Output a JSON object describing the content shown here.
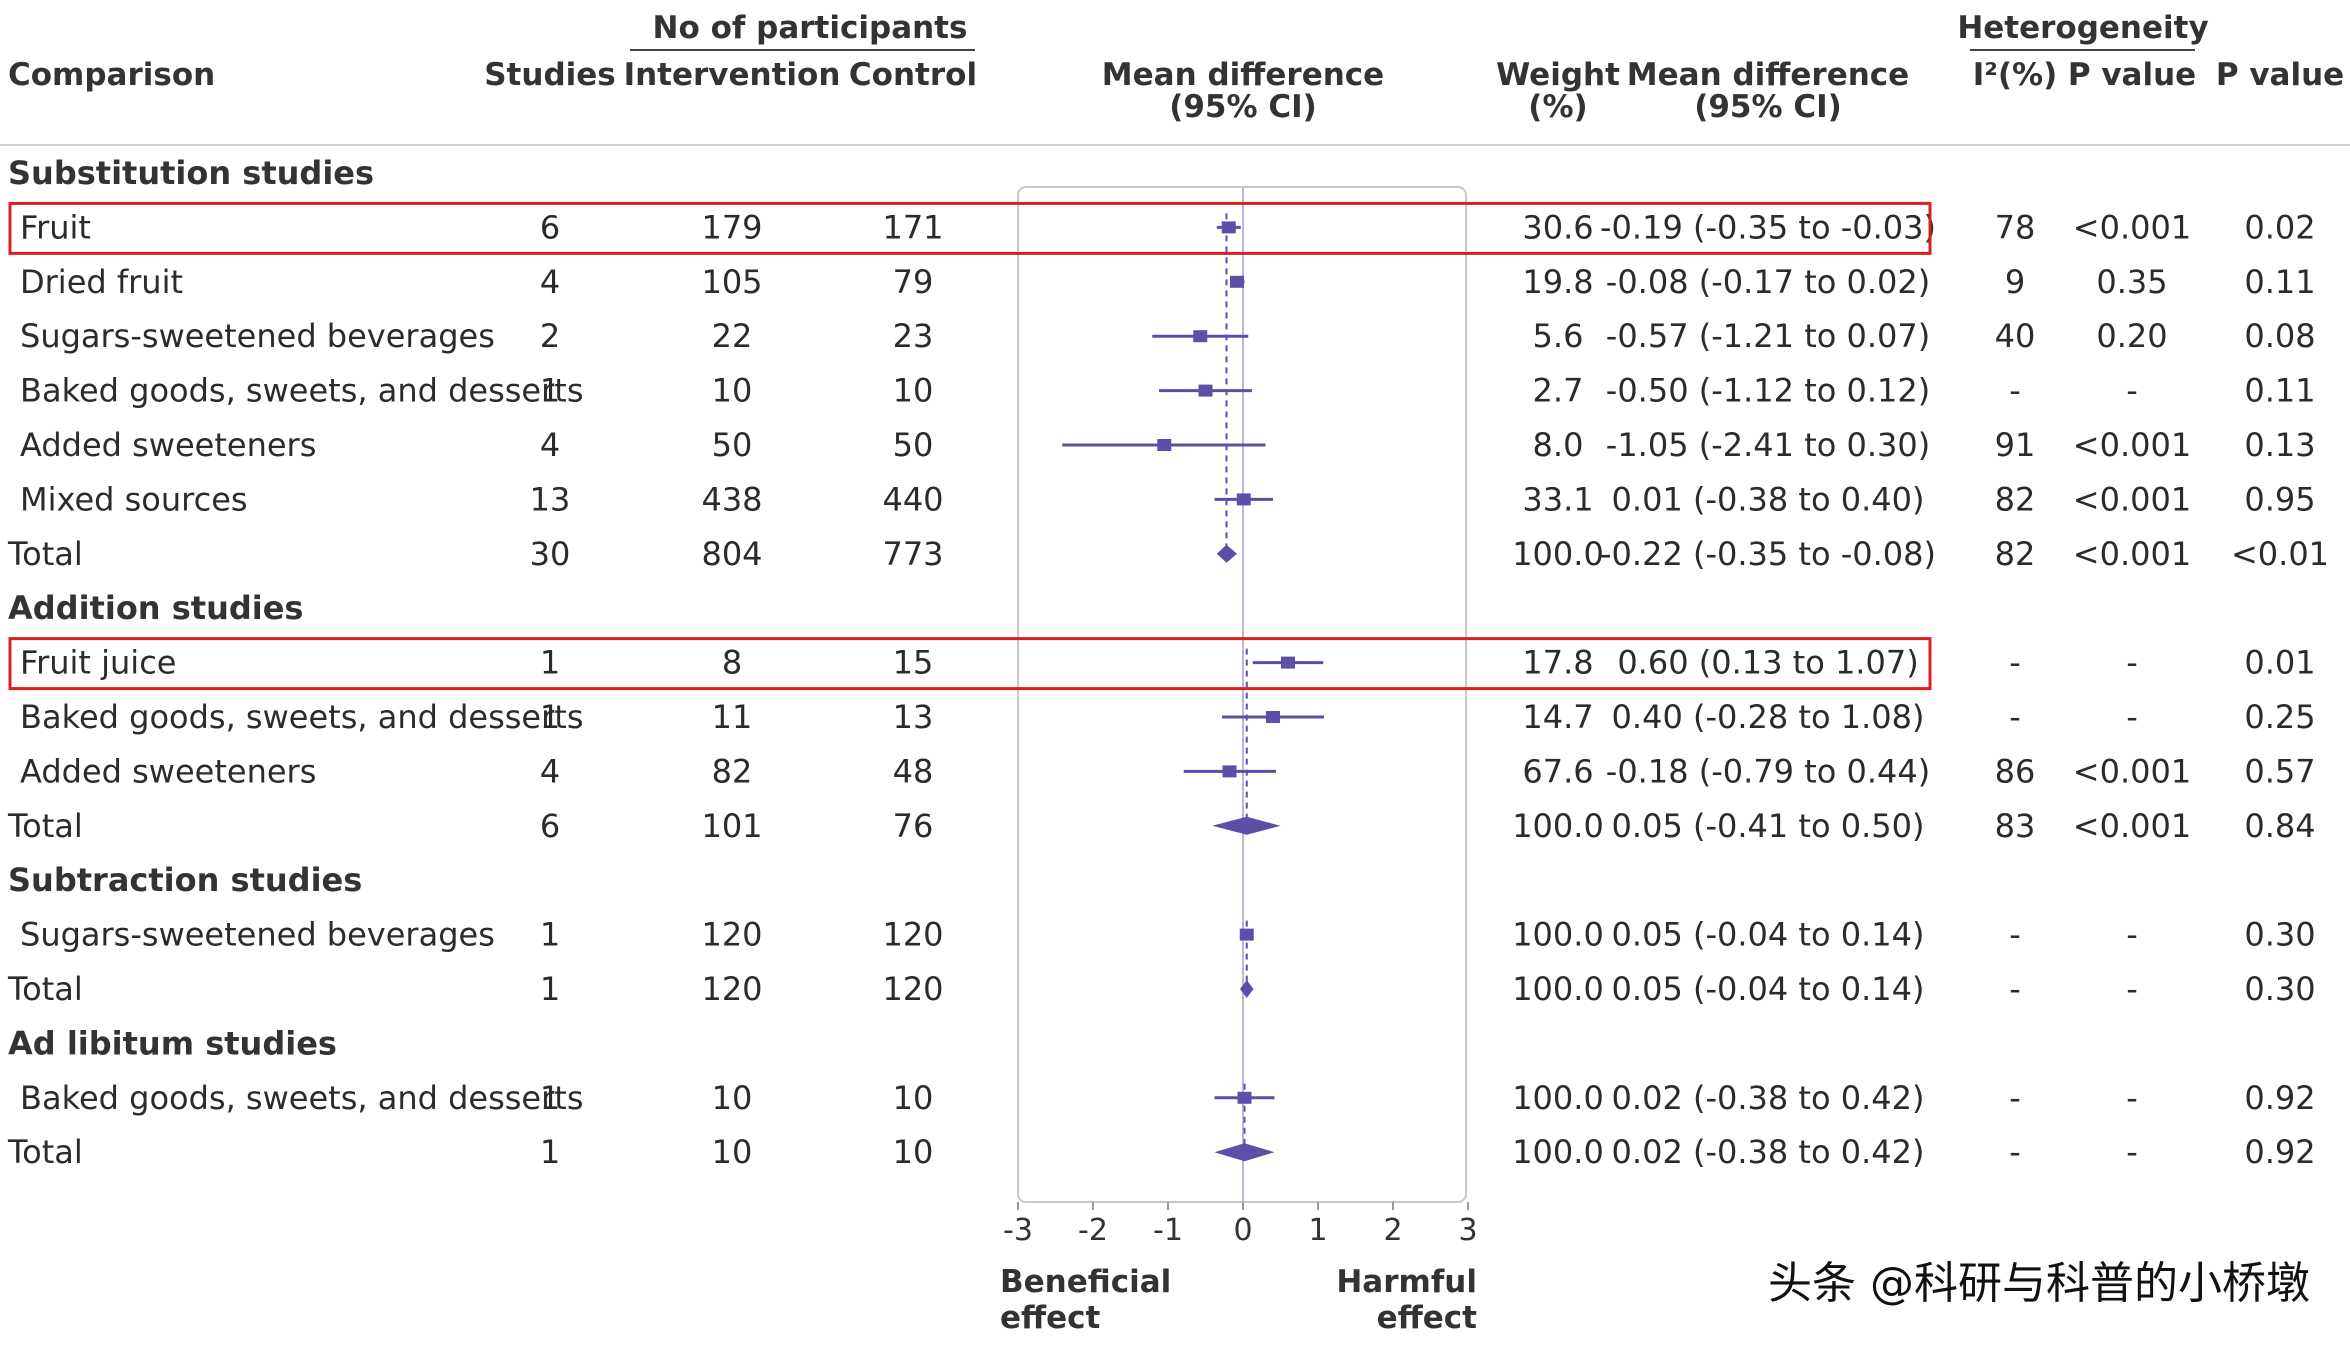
{
  "headers": {
    "participants_group": "No of participants",
    "heterogeneity_group": "Heterogeneity",
    "comparison": "Comparison",
    "studies": "Studies",
    "intervention": "Intervention",
    "control": "Control",
    "forest_line1": "Mean difference",
    "forest_line2": "(95% CI)",
    "weight_line1": "Weight",
    "weight_line2": "(%)",
    "md_line1": "Mean difference",
    "md_line2": "(95% CI)",
    "i2": "I²(%)",
    "het_p": "P value",
    "p": "P value"
  },
  "rows": [
    {
      "kind": "section",
      "label": "Substitution studies"
    },
    {
      "kind": "study",
      "label": "Fruit",
      "studies": "6",
      "intervention": "179",
      "control": "171",
      "weight": "30.6",
      "ci_text": "-0.19 (-0.35 to -0.03)",
      "i2": "78",
      "het_p": "<0.001",
      "p": "0.02",
      "highlight": true
    },
    {
      "kind": "study",
      "label": "Dried fruit",
      "studies": "4",
      "intervention": "105",
      "control": "79",
      "weight": "19.8",
      "ci_text": "-0.08 (-0.17 to 0.02)",
      "i2": "9",
      "het_p": "0.35",
      "p": "0.11"
    },
    {
      "kind": "study",
      "label": "Sugars-sweetened beverages",
      "studies": "2",
      "intervention": "22",
      "control": "23",
      "weight": "5.6",
      "ci_text": "-0.57 (-1.21 to 0.07)",
      "i2": "40",
      "het_p": "0.20",
      "p": "0.08"
    },
    {
      "kind": "study",
      "label": "Baked goods, sweets, and desserts",
      "studies": "1",
      "intervention": "10",
      "control": "10",
      "weight": "2.7",
      "ci_text": "-0.50 (-1.12 to 0.12)",
      "i2": "-",
      "het_p": "-",
      "p": "0.11"
    },
    {
      "kind": "study",
      "label": "Added sweeteners",
      "studies": "4",
      "intervention": "50",
      "control": "50",
      "weight": "8.0",
      "ci_text": "-1.05 (-2.41 to 0.30)",
      "i2": "91",
      "het_p": "<0.001",
      "p": "0.13"
    },
    {
      "kind": "study",
      "label": "Mixed sources",
      "studies": "13",
      "intervention": "438",
      "control": "440",
      "weight": "33.1",
      "ci_text": "0.01 (-0.38 to 0.40)",
      "i2": "82",
      "het_p": "<0.001",
      "p": "0.95"
    },
    {
      "kind": "total",
      "label": "Total",
      "studies": "30",
      "intervention": "804",
      "control": "773",
      "weight": "100.0",
      "ci_text": "-0.22 (-0.35 to -0.08)",
      "i2": "82",
      "het_p": "<0.001",
      "p": "<0.01"
    },
    {
      "kind": "section",
      "label": "Addition studies"
    },
    {
      "kind": "study",
      "label": "Fruit juice",
      "studies": "1",
      "intervention": "8",
      "control": "15",
      "weight": "17.8",
      "ci_text": "0.60 (0.13 to 1.07)",
      "i2": "-",
      "het_p": "-",
      "p": "0.01",
      "highlight": true
    },
    {
      "kind": "study",
      "label": "Baked goods, sweets, and desserts",
      "studies": "1",
      "intervention": "11",
      "control": "13",
      "weight": "14.7",
      "ci_text": "0.40 (-0.28 to 1.08)",
      "i2": "-",
      "het_p": "-",
      "p": "0.25"
    },
    {
      "kind": "study",
      "label": "Added sweeteners",
      "studies": "4",
      "intervention": "82",
      "control": "48",
      "weight": "67.6",
      "ci_text": "-0.18 (-0.79 to 0.44)",
      "i2": "86",
      "het_p": "<0.001",
      "p": "0.57"
    },
    {
      "kind": "total",
      "label": "Total",
      "studies": "6",
      "intervention": "101",
      "control": "76",
      "weight": "100.0",
      "ci_text": "0.05 (-0.41 to 0.50)",
      "i2": "83",
      "het_p": "<0.001",
      "p": "0.84"
    },
    {
      "kind": "section",
      "label": "Subtraction studies"
    },
    {
      "kind": "study",
      "label": "Sugars-sweetened beverages",
      "studies": "1",
      "intervention": "120",
      "control": "120",
      "weight": "100.0",
      "ci_text": "0.05 (-0.04 to 0.14)",
      "i2": "-",
      "het_p": "-",
      "p": "0.30"
    },
    {
      "kind": "total",
      "label": "Total",
      "studies": "1",
      "intervention": "120",
      "control": "120",
      "weight": "100.0",
      "ci_text": "0.05 (-0.04 to 0.14)",
      "i2": "-",
      "het_p": "-",
      "p": "0.30"
    },
    {
      "kind": "section",
      "label": "Ad libitum studies"
    },
    {
      "kind": "study",
      "label": "Baked goods, sweets, and desserts",
      "studies": "1",
      "intervention": "10",
      "control": "10",
      "weight": "100.0",
      "ci_text": "0.02 (-0.38 to 0.42)",
      "i2": "-",
      "het_p": "-",
      "p": "0.92"
    },
    {
      "kind": "total",
      "label": "Total",
      "studies": "1",
      "intervention": "10",
      "control": "10",
      "weight": "100.0",
      "ci_text": "0.02 (-0.38 to 0.42)",
      "i2": "-",
      "het_p": "-",
      "p": "0.92"
    }
  ],
  "chart_data": {
    "type": "forest",
    "x_range": [
      -3,
      3
    ],
    "x_ticks": [
      "-3",
      "-2",
      "-1",
      "0",
      "1",
      "2",
      "3"
    ],
    "x_tick_values": [
      -3,
      -2,
      -1,
      0,
      1,
      2,
      3
    ],
    "left_label_line1": "Beneficial",
    "left_label_line2": "effect",
    "right_label_line1": "Harmful",
    "right_label_line2": "effect",
    "estimates": [
      {
        "label": "Fruit",
        "mean": -0.19,
        "lower": -0.35,
        "upper": -0.03,
        "kind": "study"
      },
      {
        "label": "Dried fruit",
        "mean": -0.08,
        "lower": -0.17,
        "upper": 0.02,
        "kind": "study"
      },
      {
        "label": "Sugars-sweetened beverages",
        "mean": -0.57,
        "lower": -1.21,
        "upper": 0.07,
        "kind": "study"
      },
      {
        "label": "Baked goods, sweets, and desserts",
        "mean": -0.5,
        "lower": -1.12,
        "upper": 0.12,
        "kind": "study"
      },
      {
        "label": "Added sweeteners",
        "mean": -1.05,
        "lower": -2.41,
        "upper": 0.3,
        "kind": "study"
      },
      {
        "label": "Mixed sources",
        "mean": 0.01,
        "lower": -0.38,
        "upper": 0.4,
        "kind": "study"
      },
      {
        "label": "Total",
        "mean": -0.22,
        "lower": -0.35,
        "upper": -0.08,
        "kind": "total"
      },
      {
        "label": "Fruit juice",
        "mean": 0.6,
        "lower": 0.13,
        "upper": 1.07,
        "kind": "study"
      },
      {
        "label": "Baked goods, sweets, and desserts",
        "mean": 0.4,
        "lower": -0.28,
        "upper": 1.08,
        "kind": "study"
      },
      {
        "label": "Added sweeteners",
        "mean": -0.18,
        "lower": -0.79,
        "upper": 0.44,
        "kind": "study"
      },
      {
        "label": "Total",
        "mean": 0.05,
        "lower": -0.41,
        "upper": 0.5,
        "kind": "total"
      },
      {
        "label": "Sugars-sweetened beverages",
        "mean": 0.05,
        "lower": -0.04,
        "upper": 0.14,
        "kind": "study"
      },
      {
        "label": "Total",
        "mean": 0.05,
        "lower": -0.04,
        "upper": 0.14,
        "kind": "total"
      },
      {
        "label": "Baked goods, sweets, and desserts",
        "mean": 0.02,
        "lower": -0.38,
        "upper": 0.42,
        "kind": "study"
      },
      {
        "label": "Total",
        "mean": 0.02,
        "lower": -0.38,
        "upper": 0.42,
        "kind": "total"
      }
    ]
  },
  "colors": {
    "marker": "#5b4fa8",
    "highlight_box": "#dd1f1f",
    "panel_border": "#c8c8c8",
    "row_text": "#2b2b2b"
  },
  "watermark": "头条 @科研与科普的小桥墩"
}
